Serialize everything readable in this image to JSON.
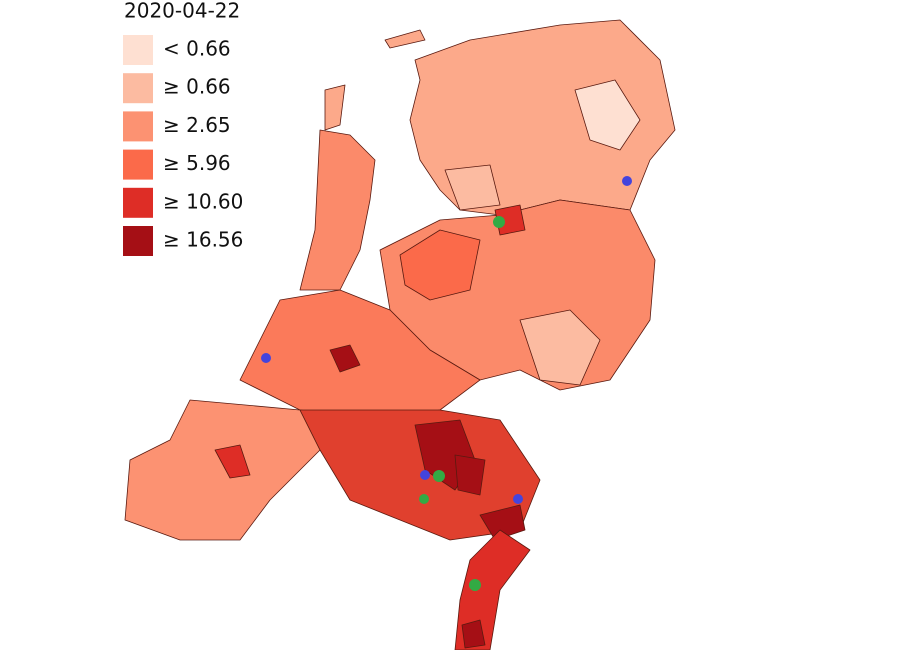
{
  "title": "2020-04-22",
  "legend": {
    "items": [
      {
        "label": "< 0.66",
        "color": "#fee0d2"
      },
      {
        "label": "≥ 0.66",
        "color": "#fcbba1"
      },
      {
        "label": "≥ 2.65",
        "color": "#fc9272"
      },
      {
        "label": "≥ 5.96",
        "color": "#fb6a4a"
      },
      {
        "label": "≥ 10.60",
        "color": "#de2d26"
      },
      {
        "label": "≥ 16.56",
        "color": "#a50f15"
      }
    ]
  }
}
